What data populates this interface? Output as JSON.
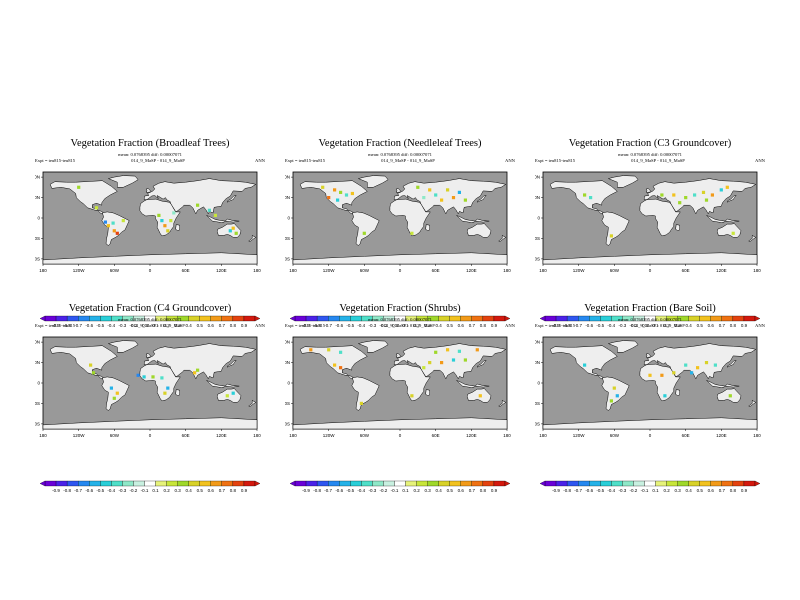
{
  "chart_data": [
    {
      "type": "heatmap",
      "title": "Vegetation Fraction (Broadleaf Trees)",
      "stats_line": "mean: 0.0768395 diff: 0.00007071",
      "expt_label": "Expt = teu815-teu815",
      "expt_pair": "014_9_MaSP - 014_9_MaSP",
      "season": "ANN",
      "lon_ticks": [
        "180",
        "120W",
        "60W",
        "0",
        "60E",
        "120E",
        "180"
      ],
      "lat_ticks": [
        "80N",
        "40N",
        "0",
        "40S",
        "80S"
      ],
      "colorbar_levels": [
        "-0.9",
        "-0.8",
        "-0.7",
        "-0.6",
        "-0.5",
        "-0.4",
        "-0.3",
        "-0.2",
        "-0.1",
        "0.1",
        "0.2",
        "0.3",
        "0.4",
        "0.5",
        "0.6",
        "0.7",
        "0.8",
        "0.9"
      ],
      "anomaly_points": [
        {
          "lon": -120,
          "lat": 60,
          "v": 0.3
        },
        {
          "lon": -75,
          "lat": -8,
          "v": -0.6
        },
        {
          "lon": -70,
          "lat": -15,
          "v": 0.5
        },
        {
          "lon": -62,
          "lat": -10,
          "v": -0.3
        },
        {
          "lon": -60,
          "lat": -25,
          "v": 0.6
        },
        {
          "lon": -55,
          "lat": -30,
          "v": 0.8
        },
        {
          "lon": -45,
          "lat": -5,
          "v": 0.2
        },
        {
          "lon": 15,
          "lat": 5,
          "v": 0.3
        },
        {
          "lon": 20,
          "lat": -5,
          "v": -0.4
        },
        {
          "lon": 25,
          "lat": -15,
          "v": 0.6
        },
        {
          "lon": 30,
          "lat": -25,
          "v": 0.4
        },
        {
          "lon": 35,
          "lat": -5,
          "v": 0.2
        },
        {
          "lon": 40,
          "lat": 10,
          "v": -0.2
        },
        {
          "lon": 80,
          "lat": 25,
          "v": 0.3
        },
        {
          "lon": 100,
          "lat": 15,
          "v": -0.3
        },
        {
          "lon": 110,
          "lat": 5,
          "v": 0.2
        },
        {
          "lon": 135,
          "lat": -25,
          "v": -0.4
        },
        {
          "lon": 145,
          "lat": -30,
          "v": 0.3
        },
        {
          "lon": 140,
          "lat": -20,
          "v": 0.5
        },
        {
          "lon": -90,
          "lat": 20,
          "v": 0.2
        }
      ]
    },
    {
      "type": "heatmap",
      "title": "Vegetation Fraction (Needleleaf Trees)",
      "stats_line": "mean: 0.0768395 diff: 0.00007071",
      "expt_label": "Expt = teu815-teu815",
      "expt_pair": "014_9_MaSP - 014_9_MaSP",
      "season": "ANN",
      "lon_ticks": [
        "180",
        "120W",
        "60W",
        "0",
        "60E",
        "120E",
        "180"
      ],
      "lat_ticks": [
        "80N",
        "40N",
        "0",
        "40S",
        "80S"
      ],
      "colorbar_levels": [
        "-0.9",
        "-0.8",
        "-0.7",
        "-0.6",
        "-0.5",
        "-0.4",
        "-0.3",
        "-0.2",
        "-0.1",
        "0.1",
        "0.2",
        "0.3",
        "0.4",
        "0.5",
        "0.6",
        "0.7",
        "0.8",
        "0.9"
      ],
      "anomaly_points": [
        {
          "lon": -130,
          "lat": 60,
          "v": 0.4
        },
        {
          "lon": -110,
          "lat": 55,
          "v": 0.6
        },
        {
          "lon": -100,
          "lat": 50,
          "v": 0.3
        },
        {
          "lon": -90,
          "lat": 45,
          "v": -0.3
        },
        {
          "lon": -80,
          "lat": 48,
          "v": 0.5
        },
        {
          "lon": -120,
          "lat": 40,
          "v": 0.7
        },
        {
          "lon": -105,
          "lat": 35,
          "v": -0.4
        },
        {
          "lon": 30,
          "lat": 60,
          "v": 0.3
        },
        {
          "lon": 50,
          "lat": 55,
          "v": 0.5
        },
        {
          "lon": 60,
          "lat": 45,
          "v": -0.3
        },
        {
          "lon": 80,
          "lat": 55,
          "v": 0.4
        },
        {
          "lon": 90,
          "lat": 40,
          "v": 0.6
        },
        {
          "lon": 100,
          "lat": 50,
          "v": -0.5
        },
        {
          "lon": 110,
          "lat": 35,
          "v": 0.3
        },
        {
          "lon": 70,
          "lat": 35,
          "v": 0.5
        },
        {
          "lon": 40,
          "lat": 40,
          "v": -0.2
        },
        {
          "lon": -60,
          "lat": -30,
          "v": 0.3
        },
        {
          "lon": 20,
          "lat": -30,
          "v": 0.2
        }
      ]
    },
    {
      "type": "heatmap",
      "title": "Vegetation Fraction (C3 Groundcover)",
      "stats_line": "mean: 0.0768395 diff: 0.00007071",
      "expt_label": "Expt = teu815-teu815",
      "expt_pair": "014_9_MaSP - 014_9_MaSP",
      "season": "ANN",
      "lon_ticks": [
        "180",
        "120W",
        "60W",
        "0",
        "60E",
        "120E",
        "180"
      ],
      "lat_ticks": [
        "80N",
        "40N",
        "0",
        "40S",
        "80S"
      ],
      "colorbar_levels": [
        "-0.9",
        "-0.8",
        "-0.7",
        "-0.6",
        "-0.5",
        "-0.4",
        "-0.3",
        "-0.2",
        "-0.1",
        "0.1",
        "0.2",
        "0.3",
        "0.4",
        "0.5",
        "0.6",
        "0.7",
        "0.8",
        "0.9"
      ],
      "anomaly_points": [
        {
          "lon": -110,
          "lat": 45,
          "v": 0.3
        },
        {
          "lon": -100,
          "lat": 40,
          "v": -0.3
        },
        {
          "lon": -65,
          "lat": -35,
          "v": 0.4
        },
        {
          "lon": 20,
          "lat": 45,
          "v": 0.3
        },
        {
          "lon": 40,
          "lat": 45,
          "v": 0.5
        },
        {
          "lon": 60,
          "lat": 40,
          "v": 0.3
        },
        {
          "lon": 75,
          "lat": 45,
          "v": -0.3
        },
        {
          "lon": 90,
          "lat": 50,
          "v": 0.4
        },
        {
          "lon": 105,
          "lat": 45,
          "v": 0.6
        },
        {
          "lon": 120,
          "lat": 55,
          "v": -0.4
        },
        {
          "lon": 95,
          "lat": 35,
          "v": 0.3
        },
        {
          "lon": 140,
          "lat": -30,
          "v": 0.2
        },
        {
          "lon": 50,
          "lat": 30,
          "v": 0.3
        },
        {
          "lon": 130,
          "lat": 60,
          "v": 0.5
        }
      ]
    },
    {
      "type": "heatmap",
      "title": "Vegetation Fraction (C4 Groundcover)",
      "stats_line": "mean: 0.0768395 diff: 0.00007071",
      "expt_label": "Expt = teu815-teu815",
      "expt_pair": "014_9_MaSP - 014_9_MaSP",
      "season": "ANN",
      "lon_ticks": [
        "180",
        "120W",
        "60W",
        "0",
        "60E",
        "120E",
        "180"
      ],
      "lat_ticks": [
        "80N",
        "40N",
        "0",
        "40S",
        "80S"
      ],
      "colorbar_levels": [
        "-0.9",
        "-0.8",
        "-0.7",
        "-0.6",
        "-0.5",
        "-0.4",
        "-0.3",
        "-0.2",
        "-0.1",
        "0.1",
        "0.2",
        "0.3",
        "0.4",
        "0.5",
        "0.6",
        "0.7",
        "0.8",
        "0.9"
      ],
      "anomaly_points": [
        {
          "lon": -100,
          "lat": 35,
          "v": 0.4
        },
        {
          "lon": -95,
          "lat": 20,
          "v": 0.3
        },
        {
          "lon": -65,
          "lat": -10,
          "v": -0.5
        },
        {
          "lon": -55,
          "lat": -20,
          "v": 0.5
        },
        {
          "lon": -60,
          "lat": -30,
          "v": 0.3
        },
        {
          "lon": -20,
          "lat": 15,
          "v": -0.6
        },
        {
          "lon": -10,
          "lat": 12,
          "v": -0.4
        },
        {
          "lon": 5,
          "lat": 12,
          "v": 0.3
        },
        {
          "lon": 20,
          "lat": 10,
          "v": -0.3
        },
        {
          "lon": 30,
          "lat": -10,
          "v": -0.5
        },
        {
          "lon": 25,
          "lat": -20,
          "v": 0.4
        },
        {
          "lon": 75,
          "lat": 20,
          "v": 0.5
        },
        {
          "lon": 80,
          "lat": 25,
          "v": 0.3
        },
        {
          "lon": 140,
          "lat": -20,
          "v": -0.4
        },
        {
          "lon": 130,
          "lat": -25,
          "v": 0.2
        }
      ]
    },
    {
      "type": "heatmap",
      "title": "Vegetation Fraction (Shrubs)",
      "stats_line": "mean: 0.0768395 diff: 0.00007071",
      "expt_label": "Expt = teu815-teu815",
      "expt_pair": "014_9_MaSP - 014_9_MaSP",
      "season": "ANN",
      "lon_ticks": [
        "180",
        "120W",
        "60W",
        "0",
        "60E",
        "120E",
        "180"
      ],
      "lat_ticks": [
        "80N",
        "40N",
        "0",
        "40S",
        "80S"
      ],
      "colorbar_levels": [
        "-0.9",
        "-0.8",
        "-0.7",
        "-0.6",
        "-0.5",
        "-0.4",
        "-0.3",
        "-0.2",
        "-0.1",
        "0.1",
        "0.2",
        "0.3",
        "0.4",
        "0.5",
        "0.6",
        "0.7",
        "0.8",
        "0.9"
      ],
      "anomaly_points": [
        {
          "lon": -150,
          "lat": 65,
          "v": 0.6
        },
        {
          "lon": -120,
          "lat": 65,
          "v": 0.4
        },
        {
          "lon": -100,
          "lat": 60,
          "v": -0.3
        },
        {
          "lon": -110,
          "lat": 35,
          "v": 0.5
        },
        {
          "lon": -100,
          "lat": 30,
          "v": 0.7
        },
        {
          "lon": -65,
          "lat": -40,
          "v": 0.4
        },
        {
          "lon": 60,
          "lat": 60,
          "v": 0.3
        },
        {
          "lon": 80,
          "lat": 65,
          "v": 0.5
        },
        {
          "lon": 100,
          "lat": 62,
          "v": -0.3
        },
        {
          "lon": 130,
          "lat": 65,
          "v": 0.6
        },
        {
          "lon": 50,
          "lat": 40,
          "v": 0.4
        },
        {
          "lon": 70,
          "lat": 40,
          "v": 0.6
        },
        {
          "lon": 90,
          "lat": 45,
          "v": -0.4
        },
        {
          "lon": 110,
          "lat": 45,
          "v": 0.3
        },
        {
          "lon": 20,
          "lat": -25,
          "v": 0.4
        },
        {
          "lon": 135,
          "lat": -25,
          "v": 0.5
        },
        {
          "lon": 40,
          "lat": 30,
          "v": 0.2
        }
      ]
    },
    {
      "type": "heatmap",
      "title": "Vegetation Fraction (Bare Soil)",
      "stats_line": "mean: 0.0768395 diff: 0.00007071",
      "expt_label": "Expt = teu815-teu815",
      "expt_pair": "014_9_MaSP - 014_9_MaSP",
      "season": "ANN",
      "lon_ticks": [
        "180",
        "120W",
        "60W",
        "0",
        "60E",
        "120E",
        "180"
      ],
      "lat_ticks": [
        "80N",
        "40N",
        "0",
        "40S",
        "80S"
      ],
      "colorbar_levels": [
        "-0.9",
        "-0.8",
        "-0.7",
        "-0.6",
        "-0.5",
        "-0.4",
        "-0.3",
        "-0.2",
        "-0.1",
        "0.1",
        "0.2",
        "0.3",
        "0.4",
        "0.5",
        "0.6",
        "0.7",
        "0.8",
        "0.9"
      ],
      "anomaly_points": [
        {
          "lon": -110,
          "lat": 35,
          "v": -0.4
        },
        {
          "lon": -60,
          "lat": -10,
          "v": 0.4
        },
        {
          "lon": -55,
          "lat": -25,
          "v": -0.5
        },
        {
          "lon": -65,
          "lat": -35,
          "v": 0.3
        },
        {
          "lon": 0,
          "lat": 15,
          "v": 0.5
        },
        {
          "lon": 20,
          "lat": 15,
          "v": 0.6
        },
        {
          "lon": 40,
          "lat": 20,
          "v": 0.4
        },
        {
          "lon": 60,
          "lat": 35,
          "v": -0.3
        },
        {
          "lon": 80,
          "lat": 30,
          "v": 0.5
        },
        {
          "lon": 95,
          "lat": 40,
          "v": 0.4
        },
        {
          "lon": 110,
          "lat": 35,
          "v": -0.3
        },
        {
          "lon": 25,
          "lat": -25,
          "v": -0.4
        },
        {
          "lon": 135,
          "lat": -25,
          "v": 0.3
        },
        {
          "lon": 70,
          "lat": 20,
          "v": -0.5
        }
      ]
    }
  ],
  "colors": {
    "ocean": "#999999",
    "land": "#eeeeee",
    "palette": [
      "#6a00d8",
      "#4b22e8",
      "#2f56f0",
      "#2688f0",
      "#25b2e8",
      "#29cfd8",
      "#4fdfc8",
      "#8fe8c8",
      "#c8f0e0",
      "#e6f27a",
      "#c8e63a",
      "#9fd82a",
      "#d8d228",
      "#f2c21e",
      "#f29a18",
      "#ef7112",
      "#e4420f",
      "#d4190e"
    ]
  }
}
